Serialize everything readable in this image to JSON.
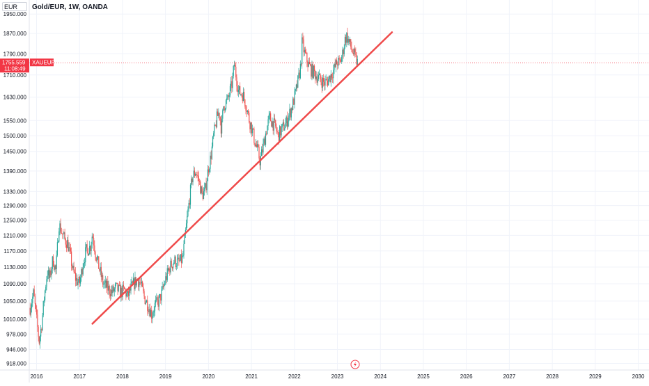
{
  "header": {
    "currency": "EUR",
    "title": "Gold/EUR, 1W, OANDA"
  },
  "price_tag": {
    "price": "1755.559",
    "symbol": "XAUEUR",
    "countdown": "11:08:49",
    "color": "#f23645"
  },
  "icons": {
    "flash": "lightning-icon"
  },
  "chart_data": {
    "type": "candlestick",
    "scale": "log",
    "ylim": [
      905,
      2010
    ],
    "xlim": [
      2015.83,
      2030.25
    ],
    "yticks": [
      "1950.000",
      "1870.000",
      "1790.000",
      "1710.000",
      "1630.000",
      "1550.000",
      "1500.000",
      "1450.000",
      "1390.000",
      "1330.000",
      "1290.000",
      "1250.000",
      "1210.000",
      "1170.000",
      "1130.000",
      "1090.000",
      "1050.000",
      "1010.000",
      "978.000",
      "946.000",
      "918.000"
    ],
    "xticks": [
      {
        "label": "2016",
        "x": 2016
      },
      {
        "label": "2017",
        "x": 2017
      },
      {
        "label": "2018",
        "x": 2018
      },
      {
        "label": "2019",
        "x": 2019
      },
      {
        "label": "2020",
        "x": 2020
      },
      {
        "label": "2021",
        "x": 2021
      },
      {
        "label": "2022",
        "x": 2022
      },
      {
        "label": "2023",
        "x": 2023
      },
      {
        "label": "2024",
        "x": 2024
      },
      {
        "label": "2025",
        "x": 2025
      },
      {
        "label": "2026",
        "x": 2026
      },
      {
        "label": "2027",
        "x": 2027
      },
      {
        "label": "2028",
        "x": 2028
      },
      {
        "label": "2029",
        "x": 2029
      },
      {
        "label": "2030",
        "x": 2030
      }
    ],
    "up_color": "#26a69a",
    "down_color": "#ef5350",
    "last_price": 1755.559,
    "trendline": {
      "color": "#ef4a4a",
      "x1": 2017.3,
      "y1": 1000,
      "x2": 2024.27,
      "y2": 1875
    },
    "price_path": [
      [
        2015.85,
        1035
      ],
      [
        2015.93,
        1068
      ],
      [
        2016.0,
        1010
      ],
      [
        2016.06,
        962
      ],
      [
        2016.12,
        1000
      ],
      [
        2016.18,
        1060
      ],
      [
        2016.25,
        1120
      ],
      [
        2016.3,
        1100
      ],
      [
        2016.38,
        1150
      ],
      [
        2016.45,
        1120
      ],
      [
        2016.52,
        1240
      ],
      [
        2016.58,
        1220
      ],
      [
        2016.65,
        1200
      ],
      [
        2016.72,
        1190
      ],
      [
        2016.78,
        1160
      ],
      [
        2016.85,
        1120
      ],
      [
        2016.92,
        1100
      ],
      [
        2017.0,
        1090
      ],
      [
        2017.08,
        1140
      ],
      [
        2017.15,
        1170
      ],
      [
        2017.25,
        1180
      ],
      [
        2017.3,
        1215
      ],
      [
        2017.38,
        1160
      ],
      [
        2017.45,
        1130
      ],
      [
        2017.55,
        1090
      ],
      [
        2017.65,
        1080
      ],
      [
        2017.75,
        1070
      ],
      [
        2017.85,
        1080
      ],
      [
        2017.95,
        1070
      ],
      [
        2018.05,
        1075
      ],
      [
        2018.12,
        1060
      ],
      [
        2018.2,
        1080
      ],
      [
        2018.3,
        1095
      ],
      [
        2018.35,
        1100
      ],
      [
        2018.42,
        1090
      ],
      [
        2018.5,
        1060
      ],
      [
        2018.6,
        1040
      ],
      [
        2018.68,
        1020
      ],
      [
        2018.75,
        1040
      ],
      [
        2018.85,
        1050
      ],
      [
        2018.92,
        1070
      ],
      [
        2019.0,
        1100
      ],
      [
        2019.1,
        1130
      ],
      [
        2019.2,
        1145
      ],
      [
        2019.3,
        1140
      ],
      [
        2019.4,
        1150
      ],
      [
        2019.45,
        1200
      ],
      [
        2019.5,
        1250
      ],
      [
        2019.55,
        1300
      ],
      [
        2019.62,
        1370
      ],
      [
        2019.7,
        1390
      ],
      [
        2019.78,
        1360
      ],
      [
        2019.85,
        1320
      ],
      [
        2019.92,
        1330
      ],
      [
        2020.0,
        1400
      ],
      [
        2020.05,
        1430
      ],
      [
        2020.12,
        1500
      ],
      [
        2020.2,
        1560
      ],
      [
        2020.25,
        1580
      ],
      [
        2020.3,
        1520
      ],
      [
        2020.35,
        1600
      ],
      [
        2020.45,
        1620
      ],
      [
        2020.55,
        1680
      ],
      [
        2020.6,
        1750
      ],
      [
        2020.65,
        1700
      ],
      [
        2020.7,
        1650
      ],
      [
        2020.8,
        1640
      ],
      [
        2020.88,
        1600
      ],
      [
        2020.95,
        1550
      ],
      [
        2021.0,
        1530
      ],
      [
        2021.08,
        1480
      ],
      [
        2021.15,
        1450
      ],
      [
        2021.2,
        1420
      ],
      [
        2021.28,
        1470
      ],
      [
        2021.35,
        1520
      ],
      [
        2021.42,
        1560
      ],
      [
        2021.5,
        1540
      ],
      [
        2021.55,
        1530
      ],
      [
        2021.62,
        1500
      ],
      [
        2021.7,
        1520
      ],
      [
        2021.8,
        1540
      ],
      [
        2021.88,
        1570
      ],
      [
        2021.95,
        1600
      ],
      [
        2022.02,
        1640
      ],
      [
        2022.1,
        1700
      ],
      [
        2022.15,
        1750
      ],
      [
        2022.18,
        1840
      ],
      [
        2022.22,
        1800
      ],
      [
        2022.3,
        1760
      ],
      [
        2022.38,
        1730
      ],
      [
        2022.45,
        1720
      ],
      [
        2022.55,
        1700
      ],
      [
        2022.62,
        1690
      ],
      [
        2022.7,
        1680
      ],
      [
        2022.78,
        1690
      ],
      [
        2022.85,
        1710
      ],
      [
        2022.92,
        1730
      ],
      [
        2023.0,
        1760
      ],
      [
        2023.05,
        1750
      ],
      [
        2023.12,
        1790
      ],
      [
        2023.18,
        1850
      ],
      [
        2023.22,
        1860
      ],
      [
        2023.28,
        1830
      ],
      [
        2023.35,
        1800
      ],
      [
        2023.42,
        1770
      ],
      [
        2023.47,
        1755.559
      ]
    ]
  }
}
